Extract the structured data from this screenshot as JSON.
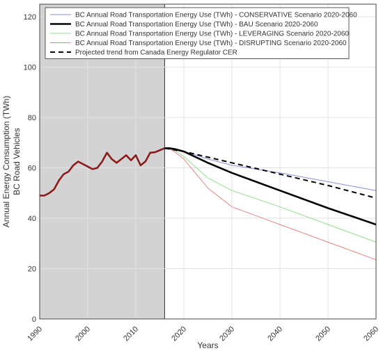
{
  "chart_data": {
    "type": "line",
    "xlabel": "Years",
    "ylabel": "Annual Energy Consumption (TWh)",
    "ylabel2": "BC Road Vehicles",
    "xlim": [
      1990,
      2060
    ],
    "ylim": [
      0,
      125
    ],
    "x_ticks": [
      1990,
      2000,
      2010,
      2020,
      2030,
      2040,
      2050,
      2060
    ],
    "y_ticks": [
      0,
      20,
      40,
      60,
      80,
      100,
      120
    ],
    "grid": true,
    "legend_position": "top-left",
    "shaded_region": {
      "x_from": 1990,
      "x_to": 2016,
      "color": "#d3d3d3"
    },
    "series": [
      {
        "name": "BC Annual Road Transportation Energy Use (TWh) - CONSERVATIVE Scenario 2020-2060",
        "color": "#8b8fd6",
        "width": 1,
        "dash": "",
        "points": [
          [
            2016,
            67.8
          ],
          [
            2017,
            67.8
          ],
          [
            2018,
            67.6
          ],
          [
            2020,
            66.6
          ],
          [
            2025,
            63.5
          ],
          [
            2030,
            61.0
          ],
          [
            2040,
            58.0
          ],
          [
            2050,
            54.5
          ],
          [
            2060,
            51.0
          ]
        ]
      },
      {
        "name": "BC Annual Road Transportation Energy Use (TWh) - BAU Scenario 2020-2060",
        "color": "#000000",
        "width": 2.6,
        "dash": "",
        "points": [
          [
            2016,
            67.8
          ],
          [
            2017,
            67.8
          ],
          [
            2018,
            67.5
          ],
          [
            2020,
            66.5
          ],
          [
            2025,
            62.0
          ],
          [
            2030,
            58.0
          ],
          [
            2040,
            51.0
          ],
          [
            2050,
            44.0
          ],
          [
            2060,
            37.5
          ]
        ]
      },
      {
        "name": "BC Annual Road Transportation Energy Use (TWh) - LEVERAGING Scenario 2020-2060",
        "color": "#8ee08a",
        "width": 1,
        "dash": "",
        "points": [
          [
            2016,
            67.8
          ],
          [
            2017,
            67.6
          ],
          [
            2018,
            67.0
          ],
          [
            2020,
            64.5
          ],
          [
            2025,
            56.0
          ],
          [
            2030,
            51.0
          ],
          [
            2040,
            44.5
          ],
          [
            2050,
            37.5
          ],
          [
            2060,
            30.5
          ]
        ]
      },
      {
        "name": "BC Annual Road Transportation Energy Use (TWh) - DISRUPTING Scenario 2020-2060",
        "color": "#e88585",
        "width": 1,
        "dash": "",
        "points": [
          [
            2016,
            67.8
          ],
          [
            2017,
            67.5
          ],
          [
            2018,
            66.5
          ],
          [
            2020,
            63.5
          ],
          [
            2025,
            52.0
          ],
          [
            2030,
            44.5
          ],
          [
            2040,
            37.5
          ],
          [
            2050,
            30.5
          ],
          [
            2060,
            23.5
          ]
        ]
      },
      {
        "name": "Projected trend from Canada Energy Regulator CER",
        "color": "#000000",
        "width": 2,
        "dash": "7 5",
        "points": [
          [
            2016,
            67.8
          ],
          [
            2020,
            66.5
          ],
          [
            2030,
            62.0
          ],
          [
            2040,
            57.5
          ],
          [
            2050,
            53.0
          ],
          [
            2060,
            48.0
          ]
        ]
      }
    ],
    "historical": {
      "name": "",
      "color": "#8b1a1a",
      "width": 2.6,
      "points": [
        [
          1990,
          49
        ],
        [
          1991,
          49
        ],
        [
          1992,
          50
        ],
        [
          1993,
          51.5
        ],
        [
          1994,
          55
        ],
        [
          1995,
          57.5
        ],
        [
          1996,
          58.5
        ],
        [
          1997,
          61
        ],
        [
          1998,
          62.5
        ],
        [
          1999,
          61.5
        ],
        [
          2000,
          60.5
        ],
        [
          2001,
          59.5
        ],
        [
          2002,
          60
        ],
        [
          2003,
          62.5
        ],
        [
          2004,
          66
        ],
        [
          2005,
          63.5
        ],
        [
          2006,
          62
        ],
        [
          2007,
          63.5
        ],
        [
          2008,
          65
        ],
        [
          2009,
          63
        ],
        [
          2010,
          65
        ],
        [
          2011,
          61
        ],
        [
          2012,
          62.5
        ],
        [
          2013,
          66
        ],
        [
          2014,
          66.2
        ],
        [
          2015,
          67
        ],
        [
          2016,
          67.8
        ]
      ]
    }
  }
}
